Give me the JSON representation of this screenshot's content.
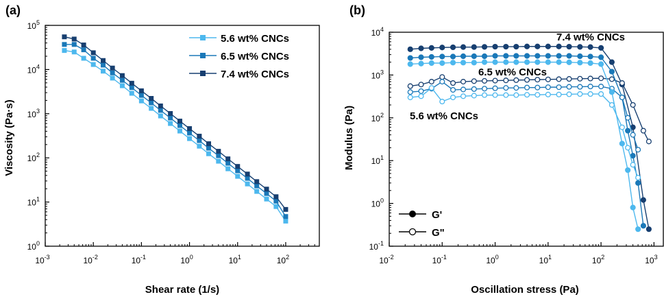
{
  "colors": {
    "c56": "#4db8ee",
    "c65": "#1a78b8",
    "c74": "#173f70"
  },
  "chart_data": [
    {
      "panel_label": "(a)",
      "type": "line",
      "xscale": "log",
      "yscale": "log",
      "xlabel": "Shear rate (1/s)",
      "ylabel": "Viscosity (Pa·s)",
      "xlim": [
        0.001,
        500
      ],
      "ylim": [
        1,
        100000
      ],
      "x_ticks": [
        {
          "base": "10",
          "exp": "-3"
        },
        {
          "base": "10",
          "exp": "-2"
        },
        {
          "base": "10",
          "exp": "-1"
        },
        {
          "base": "10",
          "exp": "0"
        },
        {
          "base": "10",
          "exp": "1"
        },
        {
          "base": "10",
          "exp": "2"
        }
      ],
      "y_ticks": [
        {
          "base": "10",
          "exp": "0"
        },
        {
          "base": "10",
          "exp": "1"
        },
        {
          "base": "10",
          "exp": "2"
        },
        {
          "base": "10",
          "exp": "3"
        },
        {
          "base": "10",
          "exp": "4"
        },
        {
          "base": "10",
          "exp": "5"
        }
      ],
      "legend_position": "top-right",
      "marker": "square",
      "series": [
        {
          "name": "5.6 wt% CNCs",
          "color": "#4db8ee",
          "x": [
            0.0025,
            0.004,
            0.0063,
            0.01,
            0.016,
            0.025,
            0.04,
            0.063,
            0.1,
            0.16,
            0.25,
            0.4,
            0.63,
            1,
            1.6,
            2.5,
            4,
            6.3,
            10,
            16,
            25,
            40,
            63,
            100
          ],
          "y": [
            27000,
            25000,
            18000,
            13000,
            9200,
            6400,
            4300,
            2900,
            1950,
            1320,
            890,
            600,
            405,
            273,
            184,
            124,
            84,
            56.6,
            38.2,
            25.7,
            17.4,
            11.7,
            7.9,
            3.7
          ]
        },
        {
          "name": "6.5 wt% CNCs",
          "color": "#1a78b8",
          "x": [
            0.0025,
            0.004,
            0.0063,
            0.01,
            0.016,
            0.025,
            0.04,
            0.063,
            0.1,
            0.16,
            0.25,
            0.4,
            0.63,
            1,
            1.6,
            2.5,
            4,
            6.3,
            10,
            16,
            25,
            40,
            63,
            100
          ],
          "y": [
            37000,
            37000,
            28000,
            18000,
            12600,
            8400,
            5700,
            3900,
            2600,
            1760,
            1190,
            800,
            540,
            365,
            246,
            166,
            112,
            75.6,
            51,
            34.4,
            23.2,
            15.6,
            10.5,
            4.7
          ]
        },
        {
          "name": "7.4 wt% CNCs",
          "color": "#173f70",
          "x": [
            0.0025,
            0.004,
            0.0063,
            0.01,
            0.016,
            0.025,
            0.04,
            0.063,
            0.1,
            0.16,
            0.25,
            0.4,
            0.63,
            1,
            1.6,
            2.5,
            4,
            6.3,
            10,
            16,
            25,
            40,
            63,
            100
          ],
          "y": [
            55000,
            49000,
            36000,
            24000,
            16000,
            10800,
            7300,
            4900,
            3300,
            2220,
            1500,
            1010,
            680,
            460,
            310,
            209,
            141,
            95,
            64,
            43,
            29,
            19.6,
            13.2,
            6.8
          ]
        }
      ]
    },
    {
      "panel_label": "(b)",
      "type": "line",
      "xscale": "log",
      "yscale": "log",
      "xlabel": "Oscillation stress (Pa)",
      "ylabel": "Modulus (Pa)",
      "xlim": [
        0.01,
        1500
      ],
      "ylim": [
        0.1,
        10000
      ],
      "x_ticks": [
        {
          "base": "10",
          "exp": "-2"
        },
        {
          "base": "10",
          "exp": "-1"
        },
        {
          "base": "10",
          "exp": "0"
        },
        {
          "base": "10",
          "exp": "1"
        },
        {
          "base": "10",
          "exp": "2"
        },
        {
          "base": "10",
          "exp": "3"
        }
      ],
      "y_ticks": [
        {
          "base": "10",
          "exp": "-1"
        },
        {
          "base": "10",
          "exp": "0"
        },
        {
          "base": "10",
          "exp": "1"
        },
        {
          "base": "10",
          "exp": "2"
        },
        {
          "base": "10",
          "exp": "3"
        },
        {
          "base": "10",
          "exp": "4"
        }
      ],
      "legend_position": "bottom-left",
      "legend": [
        {
          "label": "G'",
          "marker": "filled-circle"
        },
        {
          "label": "G\"",
          "marker": "open-circle"
        }
      ],
      "annotations": [
        {
          "text": "7.4 wt% CNCs",
          "color": "#173f70",
          "anchor_x": 100,
          "anchor_y": 7000
        },
        {
          "text": "6.5 wt% CNCs",
          "color": "#1a78b8",
          "anchor_x": 1,
          "anchor_y": 1000
        },
        {
          "text": "5.6 wt% CNCs",
          "color": "#4db8ee",
          "anchor_x": 0.15,
          "anchor_y": 140
        }
      ],
      "series": [
        {
          "name": "7.4 wt% CNCs G'",
          "color": "#173f70",
          "filled": true,
          "x": [
            0.025,
            0.04,
            0.063,
            0.1,
            0.16,
            0.25,
            0.4,
            0.63,
            1,
            1.6,
            2.5,
            4,
            6.3,
            10,
            16,
            25,
            40,
            63,
            100,
            160,
            250,
            400,
            630,
            800
          ],
          "y": [
            4000,
            4200,
            4300,
            4400,
            4450,
            4500,
            4500,
            4550,
            4600,
            4600,
            4600,
            4650,
            4650,
            4650,
            4650,
            4600,
            4550,
            4500,
            4300,
            2000,
            600,
            60,
            1.2,
            0.25
          ]
        },
        {
          "name": "7.4 wt% CNCs G\"",
          "color": "#173f70",
          "filled": false,
          "x": [
            0.025,
            0.04,
            0.063,
            0.1,
            0.16,
            0.25,
            0.4,
            0.63,
            1,
            1.6,
            2.5,
            4,
            6.3,
            10,
            16,
            25,
            40,
            63,
            100,
            160,
            250,
            400,
            630,
            800
          ],
          "y": [
            550,
            600,
            700,
            900,
            650,
            700,
            720,
            730,
            740,
            750,
            760,
            770,
            780,
            790,
            800,
            810,
            820,
            830,
            840,
            800,
            650,
            200,
            50,
            28
          ]
        },
        {
          "name": "6.5 wt% CNCs G'",
          "color": "#1a78b8",
          "filled": true,
          "x": [
            0.025,
            0.04,
            0.063,
            0.1,
            0.16,
            0.25,
            0.4,
            0.63,
            1,
            1.6,
            2.5,
            4,
            6.3,
            10,
            16,
            25,
            40,
            63,
            100,
            160,
            250,
            320,
            400,
            500,
            630
          ],
          "y": [
            2500,
            2600,
            2650,
            2700,
            2700,
            2750,
            2750,
            2750,
            2800,
            2800,
            2800,
            2800,
            2800,
            2800,
            2800,
            2800,
            2750,
            2700,
            2600,
            1200,
            300,
            50,
            13,
            3,
            0.3
          ]
        },
        {
          "name": "6.5 wt% CNCs G\"",
          "color": "#1a78b8",
          "filled": false,
          "x": [
            0.025,
            0.04,
            0.063,
            0.1,
            0.16,
            0.25,
            0.4,
            0.63,
            1,
            1.6,
            2.5,
            4,
            6.3,
            10,
            16,
            25,
            40,
            63,
            100,
            160,
            250,
            320,
            400,
            500
          ],
          "y": [
            400,
            420,
            480,
            700,
            450,
            460,
            470,
            480,
            490,
            500,
            500,
            510,
            510,
            520,
            520,
            530,
            530,
            540,
            540,
            480,
            300,
            100,
            40,
            18
          ]
        },
        {
          "name": "5.6 wt% CNCs G'",
          "color": "#4db8ee",
          "filled": true,
          "x": [
            0.025,
            0.04,
            0.063,
            0.1,
            0.16,
            0.25,
            0.4,
            0.63,
            1,
            1.6,
            2.5,
            4,
            6.3,
            10,
            16,
            25,
            40,
            63,
            100,
            160,
            250,
            320,
            400,
            500
          ],
          "y": [
            1800,
            1850,
            1900,
            1900,
            1950,
            1950,
            1950,
            2000,
            2000,
            2000,
            2000,
            2000,
            2000,
            2000,
            2000,
            1980,
            1950,
            1900,
            1800,
            400,
            25,
            6,
            0.8,
            0.25
          ]
        },
        {
          "name": "5.6 wt% CNCs G\"",
          "color": "#4db8ee",
          "filled": false,
          "x": [
            0.025,
            0.04,
            0.063,
            0.1,
            0.16,
            0.25,
            0.4,
            0.63,
            1,
            1.6,
            2.5,
            4,
            6.3,
            10,
            16,
            25,
            40,
            63,
            100,
            160,
            250,
            320,
            400,
            500
          ],
          "y": [
            300,
            320,
            500,
            240,
            300,
            320,
            330,
            340,
            340,
            340,
            340,
            345,
            345,
            350,
            350,
            355,
            360,
            360,
            360,
            200,
            60,
            20,
            8,
            4
          ]
        }
      ]
    }
  ]
}
